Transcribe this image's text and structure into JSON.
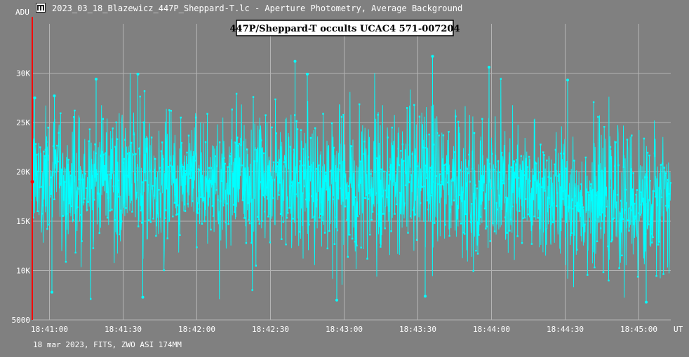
{
  "window": {
    "title": "2023_03_18_Blazewicz_447P_Sheppard-T.lc - Aperture Photometry, Average Background",
    "icon": "lightcurve-app-icon"
  },
  "footer": {
    "caption": "18 mar 2023, FITS, ZWO ASI 174MM"
  },
  "colors": {
    "background": "#808080",
    "series": "#00ffff",
    "grid": "#b4b4b4",
    "marker": "#ff0000",
    "text": "#ffffff"
  },
  "chart_data": {
    "type": "line",
    "title": "447P/Sheppard-T occults UCAC4 571-007204",
    "ylabel": "ADU",
    "xlabel_unit": "UT",
    "ylim": [
      5000,
      35000
    ],
    "y_ticks": [
      5000,
      10000,
      15000,
      20000,
      25000,
      30000
    ],
    "y_tick_labels": [
      "5000",
      "10K",
      "15K",
      "20K",
      "25K",
      "30K"
    ],
    "xlim": [
      "18:40:53",
      "18:45:13"
    ],
    "x_ticks": [
      "18:41:00",
      "18:41:30",
      "18:42:00",
      "18:42:30",
      "18:43:00",
      "18:43:30",
      "18:44:00",
      "18:44:30",
      "18:45:00"
    ],
    "grid": true,
    "markers": true,
    "cursor_time": "18:40:53",
    "series": [
      {
        "color": "#00ffff",
        "sample_interval_s": 0.12,
        "trend": [
          {
            "t": "18:40:53",
            "mean": 19000,
            "spread": 3500
          },
          {
            "t": "18:41:30",
            "mean": 19000,
            "spread": 3500
          },
          {
            "t": "18:42:30",
            "mean": 19500,
            "spread": 3500
          },
          {
            "t": "18:43:00",
            "mean": 18500,
            "spread": 3600
          },
          {
            "t": "18:43:30",
            "mean": 19000,
            "spread": 3600
          },
          {
            "t": "18:44:00",
            "mean": 18000,
            "spread": 3500
          },
          {
            "t": "18:44:30",
            "mean": 17500,
            "spread": 3300
          },
          {
            "t": "18:45:00",
            "mean": 16500,
            "spread": 3400
          },
          {
            "t": "18:45:13",
            "mean": 18000,
            "spread": 3400
          }
        ],
        "highlights": [
          {
            "t": "18:40:54",
            "value": 27500
          },
          {
            "t": "18:41:02",
            "value": 27700
          },
          {
            "t": "18:41:19",
            "value": 29400
          },
          {
            "t": "18:41:36",
            "value": 29900
          },
          {
            "t": "18:41:38",
            "value": 7300
          },
          {
            "t": "18:42:40",
            "value": 31200
          },
          {
            "t": "18:42:45",
            "value": 29900
          },
          {
            "t": "18:42:57",
            "value": 7000
          },
          {
            "t": "18:43:33",
            "value": 7400
          },
          {
            "t": "18:43:36",
            "value": 31700
          },
          {
            "t": "18:43:59",
            "value": 30600
          },
          {
            "t": "18:44:31",
            "value": 29300
          },
          {
            "t": "18:45:03",
            "value": 6800
          },
          {
            "t": "18:41:01",
            "value": 7800
          }
        ]
      }
    ]
  }
}
